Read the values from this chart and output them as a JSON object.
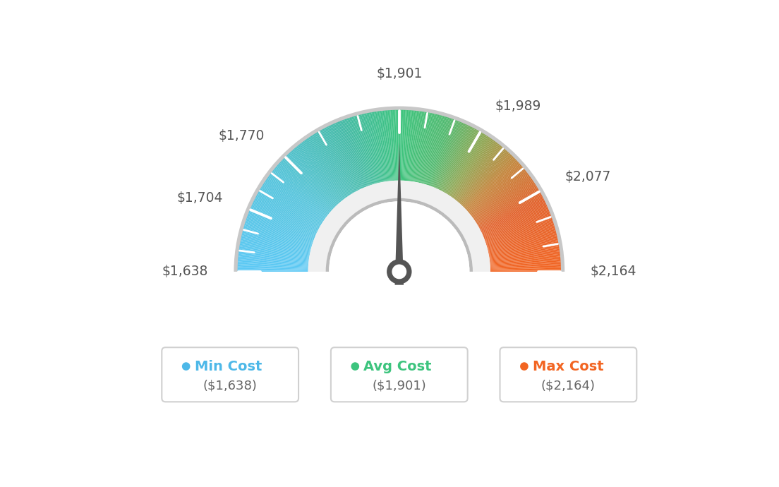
{
  "min_val": 1638,
  "max_val": 2164,
  "avg_val": 1901,
  "tick_labels": [
    "$1,638",
    "$1,704",
    "$1,770",
    "$1,901",
    "$1,989",
    "$2,077",
    "$2,164"
  ],
  "tick_values": [
    1638,
    1704,
    1770,
    1901,
    1989,
    2077,
    2164
  ],
  "legend_labels": [
    "Min Cost",
    "Avg Cost",
    "Max Cost"
  ],
  "legend_values": [
    "($1,638)",
    "($1,901)",
    "($2,164)"
  ],
  "legend_colors": [
    "#4db8e8",
    "#3dc47e",
    "#f26522"
  ],
  "bg_color": "#ffffff",
  "needle_color": "#555555",
  "color_stops": [
    [
      0.0,
      [
        91,
        200,
        245
      ]
    ],
    [
      0.2,
      [
        82,
        195,
        220
      ]
    ],
    [
      0.38,
      [
        65,
        185,
        165
      ]
    ],
    [
      0.5,
      [
        61,
        196,
        126
      ]
    ],
    [
      0.6,
      [
        80,
        185,
        110
      ]
    ],
    [
      0.68,
      [
        140,
        165,
        80
      ]
    ],
    [
      0.76,
      [
        195,
        130,
        55
      ]
    ],
    [
      0.85,
      [
        225,
        95,
        40
      ]
    ],
    [
      1.0,
      [
        242,
        101,
        34
      ]
    ]
  ]
}
